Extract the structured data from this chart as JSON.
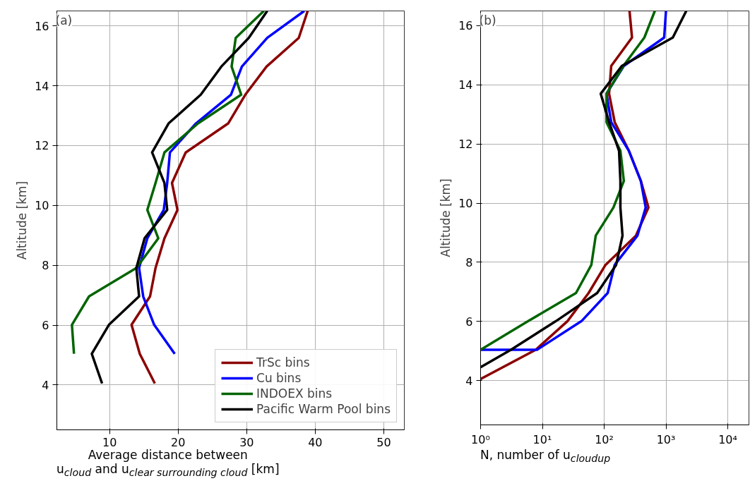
{
  "chart_data": [
    {
      "type": "line",
      "xlabel": "Average distance between\nu$_{cloud}$ and u$_{clear surrounding cloud}$ [km]",
      "ylabel": "Altitude [km]",
      "xlim": [
        2.3,
        53
      ],
      "xticks": [
        10,
        20,
        30,
        40,
        50
      ],
      "ylim": [
        2.5,
        16.5
      ],
      "yticks": [
        4,
        6,
        8,
        10,
        12,
        14,
        16
      ],
      "grid": true,
      "legend": "bottom right",
      "annotations": [
        "(a)"
      ],
      "series": [
        {
          "name": "TrSc bins",
          "color": "#8b0000",
          "x": [
            16.6,
            14.4,
            13.2,
            15.9,
            16.7,
            18.0,
            19.9,
            19.1,
            21.1,
            27.3,
            29.8,
            32.9,
            37.6,
            38.9
          ],
          "values": [
            4.05,
            5.04,
            6.01,
            6.96,
            7.91,
            8.9,
            9.85,
            10.75,
            11.77,
            12.74,
            13.7,
            14.64,
            15.6,
            16.5
          ]
        },
        {
          "name": "Cu bins",
          "color": "#0000ff",
          "x": [
            19.5,
            16.5,
            14.9,
            14.3,
            15.5,
            17.9,
            18.4,
            18.8,
            22.6,
            27.7,
            29.3,
            33.0,
            38.4
          ],
          "values": [
            5.04,
            6.01,
            6.96,
            7.91,
            8.9,
            9.85,
            10.75,
            11.77,
            12.74,
            13.7,
            14.64,
            15.6,
            16.5
          ]
        },
        {
          "name": "INDOEX bins",
          "color": "#006400",
          "x": [
            4.8,
            4.5,
            7.0,
            13.9,
            17.1,
            15.5,
            16.7,
            18.0,
            22.9,
            29.2,
            27.8,
            28.4,
            32.5
          ],
          "values": [
            5.04,
            6.01,
            6.96,
            7.91,
            8.9,
            9.85,
            10.75,
            11.77,
            12.74,
            13.7,
            14.64,
            15.6,
            16.5
          ]
        },
        {
          "name": "Pacific Warm Pool bins",
          "color": "#000000",
          "x": [
            8.9,
            7.4,
            9.9,
            14.3,
            13.9,
            15.1,
            18.4,
            18.0,
            16.2,
            18.6,
            23.3,
            26.3,
            30.3,
            33.0
          ],
          "values": [
            4.05,
            5.04,
            6.01,
            6.96,
            7.91,
            8.9,
            9.85,
            10.75,
            11.77,
            12.74,
            13.7,
            14.64,
            15.6,
            16.5
          ]
        }
      ]
    },
    {
      "type": "line",
      "xlabel": "N, number of u$_{cloudup}$",
      "ylabel": "Altitude [km]",
      "log": "x",
      "xlim": [
        1,
        22000
      ],
      "xticks": [
        {
          "value": 1,
          "label": "10⁰"
        },
        {
          "value": 10,
          "label": "10¹"
        },
        {
          "value": 100,
          "label": "10²"
        },
        {
          "value": 1000,
          "label": "10³"
        },
        {
          "value": 10000,
          "label": "10⁴"
        }
      ],
      "ylim": [
        2.5,
        16.5
      ],
      "yticks": [
        4,
        6,
        8,
        10,
        12,
        14,
        16
      ],
      "grid": true,
      "annotations": [
        "(b)"
      ],
      "series": [
        {
          "color": "#8b0000",
          "x": [
            1,
            7.8,
            25.5,
            56,
            105,
            326,
            520,
            392,
            251,
            148,
            120,
            130,
            282,
            257
          ],
          "values": [
            4.05,
            5.04,
            6.01,
            6.96,
            7.91,
            8.9,
            9.85,
            10.75,
            11.77,
            12.74,
            13.7,
            14.64,
            15.6,
            16.5
          ]
        },
        {
          "color": "#0000ff",
          "x": [
            1,
            8.2,
            43,
            114,
            148,
            345,
            470,
            392,
            251,
            130,
            109,
            208,
            935,
            1000
          ],
          "values": [
            5.04,
            5.04,
            6.01,
            6.96,
            7.91,
            8.9,
            9.85,
            10.75,
            11.77,
            12.74,
            13.7,
            14.64,
            15.6,
            16.5
          ]
        },
        {
          "color": "#006400",
          "x": [
            1,
            5.9,
            35,
            62,
            73,
            141,
            208,
            183,
            109,
            109,
            204,
            447,
            660
          ],
          "values": [
            5.04,
            6.01,
            6.96,
            7.91,
            8.9,
            9.85,
            10.75,
            11.77,
            12.74,
            13.7,
            14.64,
            15.6,
            16.5
          ]
        },
        {
          "color": "#000000",
          "x": [
            1,
            3.1,
            16.6,
            77,
            156,
            198,
            183,
            183,
            174,
            120,
            88,
            193,
            1290,
            2130
          ],
          "values": [
            4.45,
            5.04,
            6.01,
            6.96,
            7.91,
            8.9,
            9.85,
            10.75,
            11.77,
            12.74,
            13.7,
            14.64,
            15.6,
            16.5
          ]
        }
      ]
    }
  ]
}
